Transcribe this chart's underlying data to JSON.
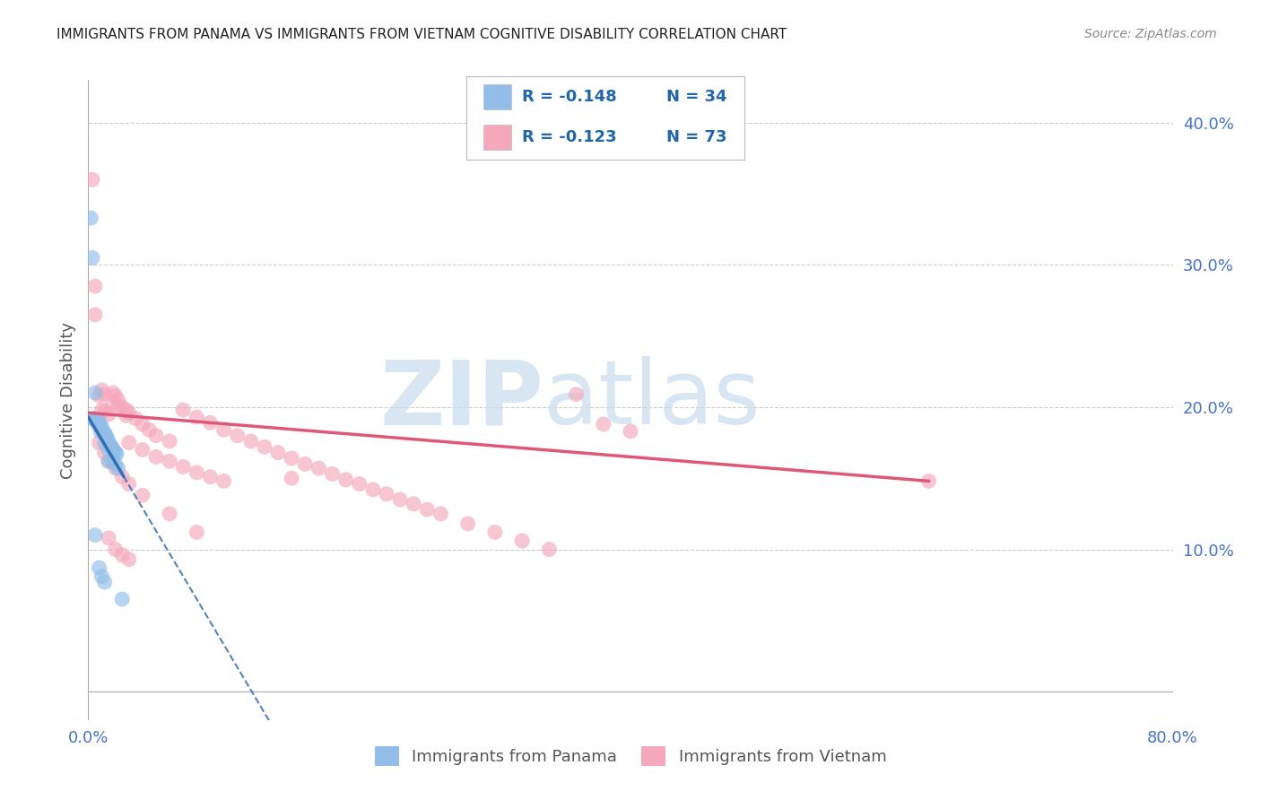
{
  "title": "IMMIGRANTS FROM PANAMA VS IMMIGRANTS FROM VIETNAM COGNITIVE DISABILITY CORRELATION CHART",
  "source": "Source: ZipAtlas.com",
  "ylabel": "Cognitive Disability",
  "xlim": [
    0.0,
    0.8
  ],
  "ylim": [
    -0.02,
    0.43
  ],
  "xtick_positions": [
    0.0,
    0.1,
    0.2,
    0.3,
    0.4,
    0.5,
    0.6,
    0.7,
    0.8
  ],
  "xticklabels": [
    "0.0%",
    "",
    "",
    "",
    "",
    "",
    "",
    "",
    "80.0%"
  ],
  "ytick_positions": [
    0.1,
    0.2,
    0.3,
    0.4
  ],
  "ytick_labels": [
    "10.0%",
    "20.0%",
    "30.0%",
    "40.0%"
  ],
  "panama_color": "#91BDE8",
  "vietnam_color": "#F5A8BC",
  "panama_line_color": "#3070B0",
  "vietnam_line_color": "#E05878",
  "legend_R_panama": "-0.148",
  "legend_N_panama": "34",
  "legend_R_vietnam": "-0.123",
  "legend_N_vietnam": "73",
  "panama_x": [
    0.002,
    0.003,
    0.004,
    0.005,
    0.006,
    0.007,
    0.008,
    0.009,
    0.01,
    0.011,
    0.012,
    0.013,
    0.014,
    0.015,
    0.016,
    0.017,
    0.018,
    0.019,
    0.02,
    0.021,
    0.005,
    0.008,
    0.01,
    0.012,
    0.015,
    0.003,
    0.006,
    0.009,
    0.012,
    0.015,
    0.018,
    0.02,
    0.022,
    0.025
  ],
  "panama_y": [
    0.333,
    0.192,
    0.192,
    0.21,
    0.191,
    0.188,
    0.19,
    0.187,
    0.186,
    0.182,
    0.182,
    0.18,
    0.178,
    0.176,
    0.173,
    0.172,
    0.171,
    0.169,
    0.168,
    0.167,
    0.11,
    0.087,
    0.081,
    0.077,
    0.162,
    0.305,
    0.19,
    0.183,
    0.175,
    0.17,
    0.162,
    0.16,
    0.157,
    0.065
  ],
  "vietnam_x": [
    0.003,
    0.005,
    0.008,
    0.01,
    0.012,
    0.015,
    0.018,
    0.02,
    0.022,
    0.025,
    0.028,
    0.03,
    0.035,
    0.04,
    0.045,
    0.05,
    0.06,
    0.07,
    0.08,
    0.09,
    0.1,
    0.11,
    0.12,
    0.13,
    0.14,
    0.15,
    0.16,
    0.17,
    0.18,
    0.19,
    0.2,
    0.21,
    0.22,
    0.23,
    0.24,
    0.25,
    0.26,
    0.28,
    0.3,
    0.32,
    0.34,
    0.36,
    0.38,
    0.4,
    0.03,
    0.04,
    0.05,
    0.06,
    0.07,
    0.08,
    0.09,
    0.1,
    0.015,
    0.02,
    0.025,
    0.03,
    0.01,
    0.012,
    0.018,
    0.022,
    0.028,
    0.005,
    0.62,
    0.008,
    0.012,
    0.015,
    0.02,
    0.025,
    0.03,
    0.04,
    0.06,
    0.08,
    0.15
  ],
  "vietnam_y": [
    0.36,
    0.285,
    0.208,
    0.198,
    0.197,
    0.195,
    0.21,
    0.208,
    0.205,
    0.2,
    0.198,
    0.196,
    0.192,
    0.188,
    0.184,
    0.18,
    0.176,
    0.198,
    0.193,
    0.189,
    0.184,
    0.18,
    0.176,
    0.172,
    0.168,
    0.164,
    0.16,
    0.157,
    0.153,
    0.149,
    0.146,
    0.142,
    0.139,
    0.135,
    0.132,
    0.128,
    0.125,
    0.118,
    0.112,
    0.106,
    0.1,
    0.209,
    0.188,
    0.183,
    0.175,
    0.17,
    0.165,
    0.162,
    0.158,
    0.154,
    0.151,
    0.148,
    0.108,
    0.1,
    0.096,
    0.093,
    0.212,
    0.209,
    0.203,
    0.2,
    0.194,
    0.265,
    0.148,
    0.175,
    0.168,
    0.162,
    0.157,
    0.151,
    0.146,
    0.138,
    0.125,
    0.112,
    0.15
  ],
  "watermark_zip": "ZIP",
  "watermark_atlas": "atlas",
  "background_color": "#FFFFFF",
  "grid_color": "#CCCCCC",
  "title_color": "#222222",
  "axis_label_color": "#555555",
  "tick_label_color": "#4472C4",
  "source_color": "#888888",
  "legend_text_color": "#2166AC",
  "legend_label_color": "#555555"
}
